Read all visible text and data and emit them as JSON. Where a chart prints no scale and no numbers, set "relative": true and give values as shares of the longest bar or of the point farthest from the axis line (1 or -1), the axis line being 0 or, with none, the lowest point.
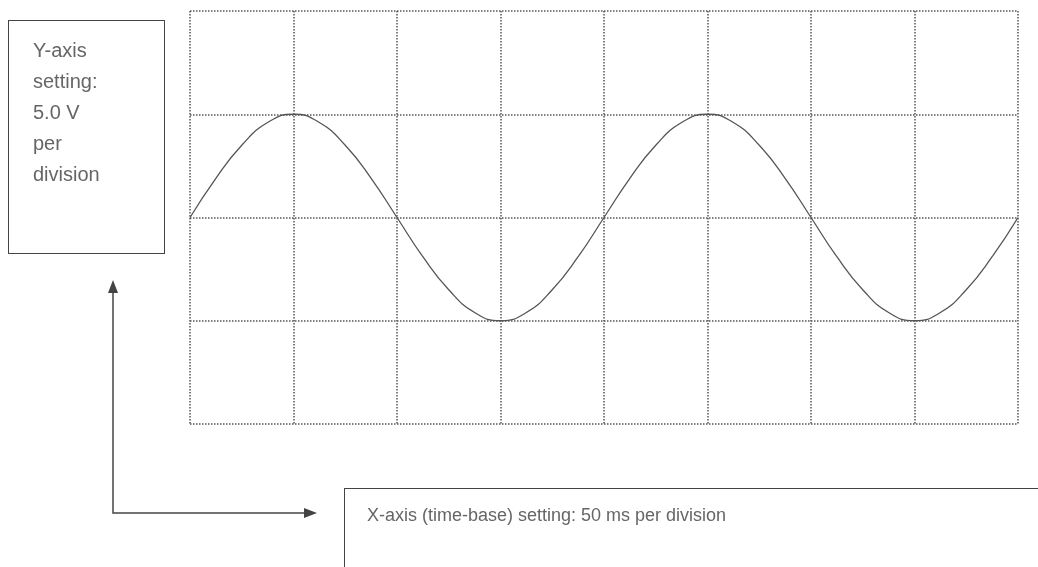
{
  "chart_data": {
    "type": "line",
    "relative": true,
    "grid": true,
    "line_style": "solid",
    "marker": "none",
    "categories": [
      null,
      null,
      null,
      null,
      null,
      null,
      null,
      null,
      null,
      null,
      null,
      null,
      null,
      null,
      null,
      null,
      null,
      null,
      null,
      null,
      null,
      null,
      null,
      null,
      null,
      null,
      null,
      null,
      null,
      null,
      null,
      null,
      null
    ],
    "series": [
      {
        "color": "#555555",
        "values": [
          0.5,
          0.69,
          0.85,
          0.96,
          1,
          0.96,
          0.85,
          0.69,
          0.5,
          0.31,
          0.15,
          0.04,
          0,
          0.04,
          0.15,
          0.31,
          0.5,
          0.69,
          0.85,
          0.96,
          1,
          0.96,
          0.85,
          0.69,
          0.5,
          0.31,
          0.15,
          0.04,
          0,
          0.04,
          0.15,
          0.31,
          0.5
        ]
      }
    ],
    "annotations": [
      "Y-axis setting: 5.0 V per division",
      "X-axis (time-base) setting: 50 ms per division"
    ]
  }
}
